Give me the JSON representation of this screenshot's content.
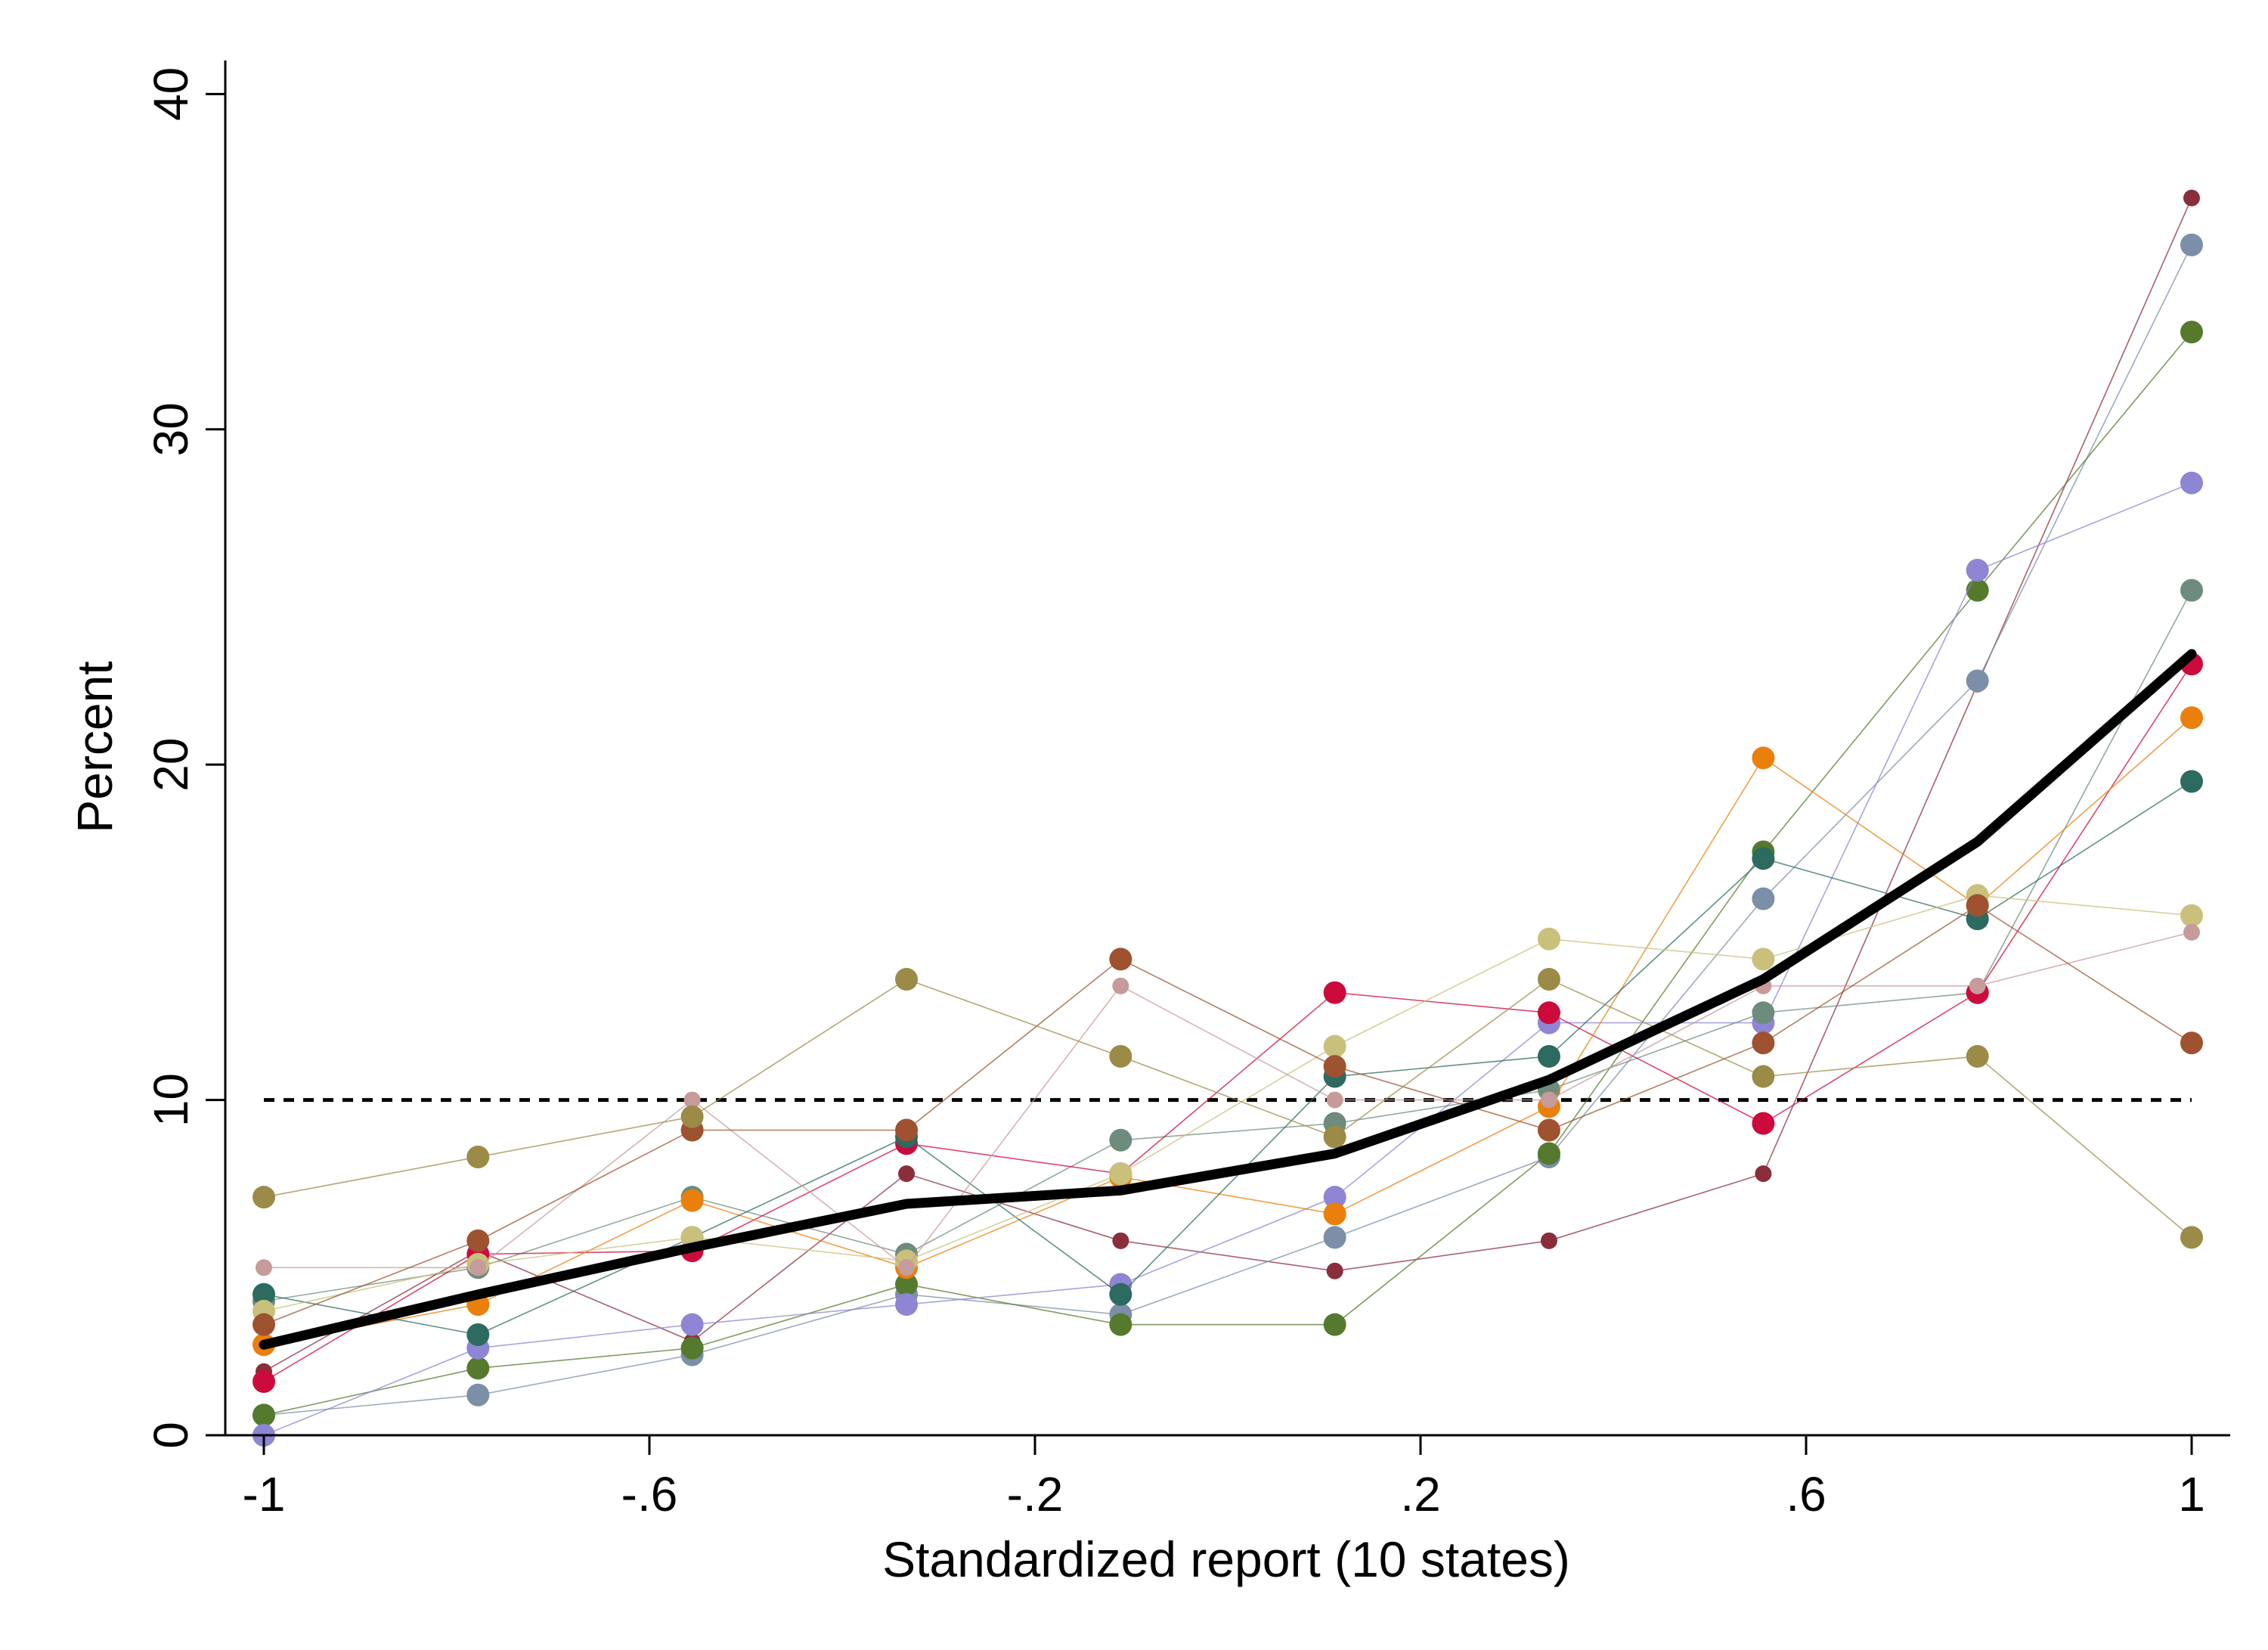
{
  "chart_data": {
    "type": "line",
    "title": "",
    "xlabel": "Standardized report (10 states)",
    "ylabel": "Percent",
    "x": [
      -1,
      -0.7778,
      -0.5556,
      -0.3333,
      -0.1111,
      0.1111,
      0.3333,
      0.5556,
      0.7778,
      1
    ],
    "xlim": [
      -1.04,
      1.04
    ],
    "ylim": [
      0,
      41
    ],
    "xticks": [
      -1,
      -0.6,
      -0.2,
      0.2,
      0.6,
      1
    ],
    "xtick_labels": [
      "-1",
      "-.6",
      "-.2",
      ".2",
      ".6",
      "1"
    ],
    "yticks": [
      0,
      10,
      20,
      30,
      40
    ],
    "ytick_labels": [
      "0",
      "10",
      "20",
      "30",
      "40"
    ],
    "grid": false,
    "legend": "none",
    "reference_line": {
      "y": 10,
      "style": "dashed",
      "color": "#000000"
    },
    "average": {
      "color": "#000000",
      "values": [
        2.7,
        4.2,
        5.6,
        6.9,
        7.3,
        8.4,
        10.6,
        13.6,
        17.7,
        23.3
      ]
    },
    "series": [
      {
        "color": "#8b2e3c",
        "marker": "small",
        "values": [
          1.9,
          5.5,
          2.8,
          7.8,
          5.8,
          4.9,
          5.8,
          7.8,
          22.4,
          36.9
        ]
      },
      {
        "color": "#7b8fa8",
        "marker": "large",
        "values": [
          0.6,
          1.2,
          2.4,
          4.2,
          3.6,
          5.9,
          8.3,
          16.0,
          22.5,
          35.5
        ]
      },
      {
        "color": "#557a2e",
        "marker": "large",
        "values": [
          0.6,
          2.0,
          2.6,
          4.5,
          3.3,
          3.3,
          8.4,
          17.4,
          25.2,
          32.9
        ]
      },
      {
        "color": "#8e85d3",
        "marker": "large",
        "values": [
          0.0,
          2.6,
          3.3,
          3.9,
          4.5,
          7.1,
          12.3,
          12.3,
          25.8,
          28.4
        ]
      },
      {
        "color": "#6e8c7d",
        "marker": "large",
        "values": [
          4.0,
          5.0,
          7.1,
          5.4,
          8.8,
          9.3,
          10.3,
          12.6,
          13.2,
          25.2
        ]
      },
      {
        "color": "#cc0a3c",
        "marker": "large",
        "values": [
          1.6,
          5.4,
          5.5,
          8.7,
          7.8,
          13.2,
          12.6,
          9.3,
          13.2,
          23.0
        ]
      },
      {
        "color": "#ea7f0c",
        "marker": "large",
        "values": [
          2.7,
          3.9,
          7.0,
          5.0,
          7.7,
          6.6,
          9.8,
          20.2,
          15.8,
          21.4
        ]
      },
      {
        "color": "#2d6a60",
        "marker": "large",
        "values": [
          4.2,
          3.0,
          5.9,
          8.9,
          4.2,
          10.7,
          11.3,
          17.2,
          15.4,
          19.5
        ]
      },
      {
        "color": "#c9c07c",
        "marker": "large",
        "values": [
          3.7,
          5.1,
          5.9,
          5.2,
          7.8,
          11.6,
          14.8,
          14.2,
          16.1,
          15.5
        ]
      },
      {
        "color": "#c79a9b",
        "marker": "small",
        "values": [
          5.0,
          5.0,
          10.0,
          5.0,
          13.4,
          10.0,
          10.0,
          13.4,
          13.4,
          15.0
        ]
      },
      {
        "color": "#9e5230",
        "marker": "large",
        "values": [
          3.3,
          5.8,
          9.1,
          9.1,
          14.2,
          11.0,
          9.1,
          11.7,
          15.8,
          11.7
        ]
      },
      {
        "color": "#9b8b47",
        "marker": "large",
        "values": [
          7.1,
          8.3,
          9.5,
          13.6,
          11.3,
          8.9,
          13.6,
          10.7,
          11.3,
          5.9
        ]
      }
    ]
  }
}
